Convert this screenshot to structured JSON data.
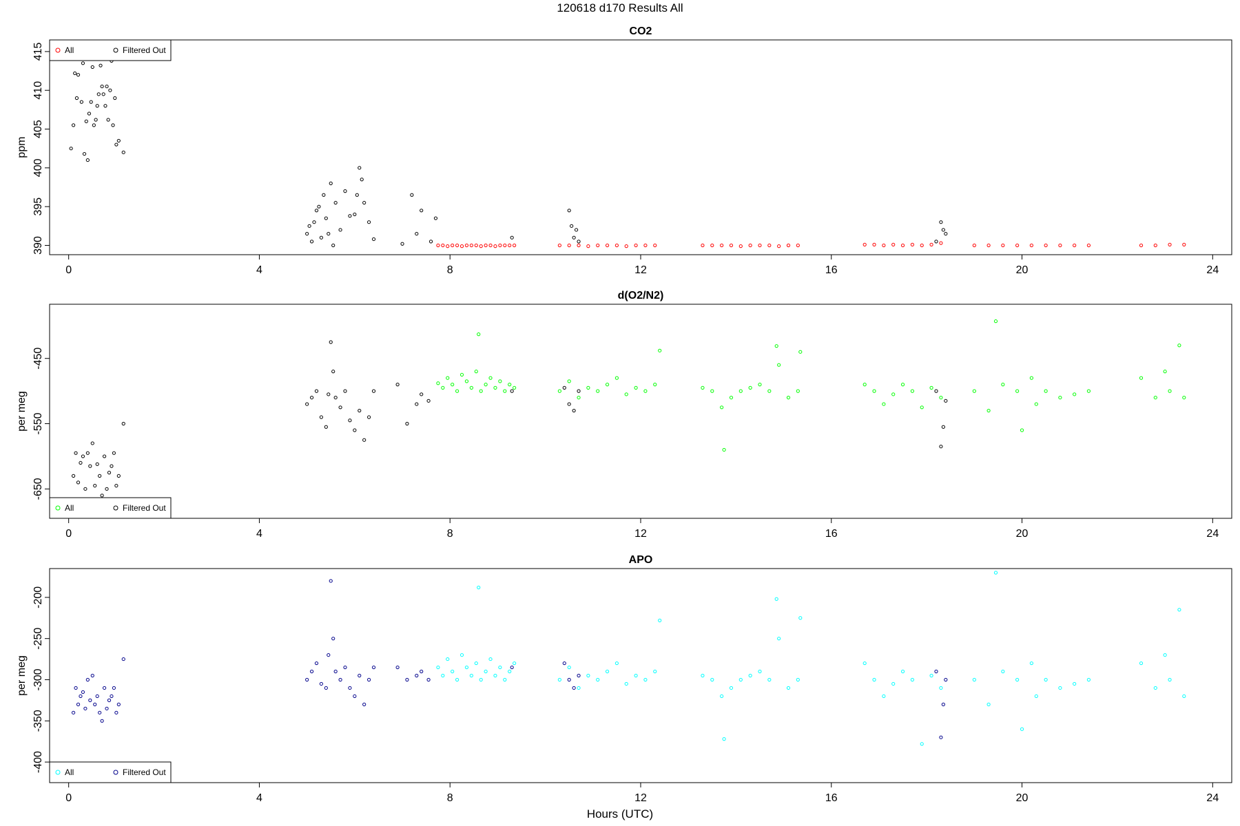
{
  "page": {
    "title": "120618   d170   Results All"
  },
  "colors": {
    "co2_all": "#ff0000",
    "o2_all": "#00ff00",
    "apo_all": "#00ffff",
    "filtered_out": "#000000"
  },
  "chart_data": [
    {
      "type": "scatter",
      "title": "CO2",
      "xlabel": "",
      "ylabel": "ppm",
      "xlim": [
        -0.4,
        24.4
      ],
      "ylim": [
        388.8,
        416.5
      ],
      "xticks": [
        0,
        4,
        8,
        12,
        16,
        20,
        24
      ],
      "yticks": [
        390,
        395,
        400,
        405,
        410,
        415
      ],
      "legend": {
        "position": "top-left",
        "entries": [
          "All",
          "Filtered Out"
        ]
      },
      "series": [
        {
          "name": "All",
          "color": "#ff0000",
          "x": [
            7.75,
            7.85,
            7.95,
            8.05,
            8.15,
            8.25,
            8.35,
            8.45,
            8.55,
            8.65,
            8.75,
            8.85,
            8.95,
            9.05,
            9.15,
            9.25,
            9.35,
            10.3,
            10.5,
            10.7,
            10.9,
            11.1,
            11.3,
            11.5,
            11.7,
            11.9,
            12.1,
            12.3,
            13.3,
            13.5,
            13.7,
            13.9,
            14.1,
            14.3,
            14.5,
            14.7,
            14.9,
            15.1,
            15.3,
            16.7,
            16.9,
            17.1,
            17.3,
            17.5,
            17.7,
            17.9,
            18.1,
            18.3,
            19.0,
            19.3,
            19.6,
            19.9,
            20.2,
            20.5,
            20.8,
            21.1,
            21.4,
            22.5,
            22.8,
            23.1,
            23.4
          ],
          "y": [
            390,
            390,
            389.9,
            390,
            390,
            389.9,
            390,
            390,
            390,
            389.9,
            390,
            390,
            389.9,
            390,
            390,
            390,
            390,
            390,
            390,
            390,
            389.9,
            390,
            390,
            390,
            389.9,
            390,
            390,
            390,
            390,
            390,
            390,
            390,
            389.9,
            390,
            390,
            390,
            389.9,
            390,
            390,
            390.1,
            390.1,
            390,
            390.1,
            390,
            390.1,
            390,
            390.1,
            390.3,
            390,
            390,
            390,
            390,
            390,
            390,
            390,
            390,
            390,
            390,
            390,
            390.1,
            390.1
          ]
        },
        {
          "name": "Filtered Out",
          "color": "#000000",
          "x": [
            0.05,
            0.1,
            0.13,
            0.17,
            0.2,
            0.23,
            0.27,
            0.3,
            0.33,
            0.37,
            0.4,
            0.43,
            0.47,
            0.5,
            0.53,
            0.57,
            0.6,
            0.63,
            0.67,
            0.7,
            0.73,
            0.77,
            0.8,
            0.83,
            0.87,
            0.9,
            0.93,
            0.97,
            1.0,
            1.05,
            1.15,
            5.0,
            5.05,
            5.1,
            5.15,
            5.2,
            5.25,
            5.3,
            5.35,
            5.4,
            5.45,
            5.5,
            5.55,
            5.6,
            5.7,
            5.8,
            5.9,
            6.0,
            6.05,
            6.1,
            6.15,
            6.2,
            6.3,
            6.4,
            7.0,
            7.2,
            7.3,
            7.4,
            7.6,
            7.7,
            9.3,
            10.5,
            10.55,
            10.6,
            10.65,
            10.7,
            18.2,
            18.3,
            18.35,
            18.4
          ],
          "y": [
            402.5,
            405.5,
            412.2,
            409,
            412,
            416,
            408.5,
            413.5,
            401.8,
            406,
            401,
            407,
            408.5,
            413,
            405.5,
            406.2,
            408,
            409.5,
            413.2,
            410.5,
            409.5,
            408,
            410.5,
            406.2,
            410,
            413.8,
            405.5,
            409,
            403,
            403.5,
            402,
            391.5,
            392.5,
            390.5,
            393,
            394.5,
            395,
            391,
            396.5,
            393.5,
            391.5,
            398,
            390,
            395.5,
            392,
            397,
            393.8,
            394,
            396.5,
            400,
            398.5,
            395.5,
            393,
            390.8,
            390.2,
            396.5,
            391.5,
            394.5,
            390.5,
            393.5,
            391,
            394.5,
            392.5,
            391,
            392,
            390.5,
            390.5,
            393,
            392,
            391.5
          ]
        }
      ]
    },
    {
      "type": "scatter",
      "title": "d(O2/N2)",
      "xlabel": "",
      "ylabel": "per meg",
      "xlim": [
        -0.4,
        24.4
      ],
      "ylim": [
        -695,
        -367
      ],
      "xticks": [
        0,
        4,
        8,
        12,
        16,
        20,
        24
      ],
      "yticks": [
        -650,
        -550,
        -450
      ],
      "legend": {
        "position": "bottom-left",
        "entries": [
          "All",
          "Filtered Out"
        ]
      },
      "series": [
        {
          "name": "All",
          "color": "#00ff00",
          "x": [
            7.75,
            7.85,
            7.95,
            8.05,
            8.15,
            8.25,
            8.35,
            8.45,
            8.55,
            8.6,
            8.65,
            8.75,
            8.85,
            8.95,
            9.05,
            9.15,
            9.25,
            9.35,
            10.3,
            10.5,
            10.7,
            10.9,
            11.1,
            11.3,
            11.5,
            11.7,
            11.9,
            12.1,
            12.3,
            12.4,
            13.3,
            13.5,
            13.7,
            13.75,
            13.9,
            14.1,
            14.3,
            14.5,
            14.7,
            14.85,
            14.9,
            15.1,
            15.3,
            15.35,
            16.7,
            16.9,
            17.1,
            17.3,
            17.5,
            17.7,
            17.9,
            18.1,
            18.3,
            19.0,
            19.3,
            19.45,
            19.6,
            19.9,
            20.0,
            20.2,
            20.3,
            20.5,
            20.8,
            21.1,
            21.4,
            22.5,
            22.8,
            23.0,
            23.1,
            23.3,
            23.4
          ],
          "y": [
            -488,
            -495,
            -480,
            -490,
            -500,
            -475,
            -485,
            -495,
            -470,
            -413,
            -500,
            -490,
            -480,
            -495,
            -485,
            -500,
            -490,
            -495,
            -500,
            -485,
            -510,
            -495,
            -500,
            -490,
            -480,
            -505,
            -495,
            -500,
            -490,
            -438,
            -495,
            -500,
            -525,
            -590,
            -510,
            -500,
            -495,
            -490,
            -500,
            -431,
            -460,
            -510,
            -500,
            -440,
            -490,
            -500,
            -520,
            -505,
            -490,
            -500,
            -525,
            -495,
            -510,
            -500,
            -530,
            -393,
            -490,
            -500,
            -560,
            -480,
            -520,
            -500,
            -510,
            -505,
            -500,
            -480,
            -510,
            -470,
            -500,
            -430,
            -510
          ]
        },
        {
          "name": "Filtered Out",
          "color": "#000000",
          "x": [
            0.1,
            0.15,
            0.2,
            0.25,
            0.3,
            0.35,
            0.4,
            0.45,
            0.5,
            0.55,
            0.6,
            0.65,
            0.7,
            0.75,
            0.8,
            0.85,
            0.9,
            0.95,
            1.0,
            1.05,
            1.15,
            5.0,
            5.1,
            5.2,
            5.3,
            5.4,
            5.45,
            5.5,
            5.55,
            5.6,
            5.7,
            5.8,
            5.9,
            6.0,
            6.1,
            6.2,
            6.3,
            6.4,
            6.9,
            7.1,
            7.3,
            7.4,
            7.55,
            9.3,
            10.4,
            10.5,
            10.6,
            10.7,
            18.2,
            18.3,
            18.35,
            18.4
          ],
          "y": [
            -630,
            -595,
            -640,
            -610,
            -600,
            -650,
            -595,
            -615,
            -580,
            -645,
            -612,
            -630,
            -660,
            -600,
            -650,
            -625,
            -615,
            -595,
            -645,
            -630,
            -550,
            -520,
            -510,
            -500,
            -540,
            -555,
            -505,
            -425,
            -470,
            -510,
            -525,
            -500,
            -545,
            -560,
            -530,
            -575,
            -540,
            -500,
            -490,
            -550,
            -520,
            -505,
            -515,
            -500,
            -495,
            -520,
            -530,
            -500,
            -500,
            -585,
            -555,
            -515
          ]
        }
      ]
    },
    {
      "type": "scatter",
      "title": "APO",
      "xlabel": "Hours (UTC)",
      "ylabel": "per meg",
      "xlim": [
        -0.4,
        24.4
      ],
      "ylim": [
        -425,
        -165
      ],
      "xticks": [
        0,
        4,
        8,
        12,
        16,
        20,
        24
      ],
      "yticks": [
        -400,
        -350,
        -300,
        -250,
        -200
      ],
      "legend": {
        "position": "bottom-left",
        "entries": [
          "All",
          "Filtered Out"
        ]
      },
      "series": [
        {
          "name": "All",
          "color": "#00ffff",
          "x": [
            7.75,
            7.85,
            7.95,
            8.05,
            8.15,
            8.25,
            8.35,
            8.45,
            8.55,
            8.6,
            8.65,
            8.75,
            8.85,
            8.95,
            9.05,
            9.15,
            9.25,
            9.35,
            10.3,
            10.5,
            10.7,
            10.9,
            11.1,
            11.3,
            11.5,
            11.7,
            11.9,
            12.1,
            12.3,
            12.4,
            13.3,
            13.5,
            13.7,
            13.75,
            13.9,
            14.1,
            14.3,
            14.5,
            14.7,
            14.85,
            14.9,
            15.1,
            15.3,
            15.35,
            16.7,
            16.9,
            17.1,
            17.3,
            17.5,
            17.7,
            17.9,
            18.1,
            18.3,
            19.0,
            19.3,
            19.45,
            19.6,
            19.9,
            20.0,
            20.2,
            20.3,
            20.5,
            20.8,
            21.1,
            21.4,
            22.5,
            22.8,
            23.0,
            23.1,
            23.3,
            23.4
          ],
          "y": [
            -285,
            -295,
            -275,
            -290,
            -300,
            -270,
            -285,
            -295,
            -280,
            -188,
            -300,
            -290,
            -275,
            -295,
            -285,
            -300,
            -290,
            -280,
            -300,
            -285,
            -310,
            -295,
            -300,
            -290,
            -280,
            -305,
            -295,
            -300,
            -290,
            -228,
            -295,
            -300,
            -320,
            -372,
            -310,
            -300,
            -295,
            -290,
            -300,
            -202,
            -250,
            -310,
            -300,
            -225,
            -280,
            -300,
            -320,
            -305,
            -290,
            -300,
            -378,
            -295,
            -310,
            -300,
            -330,
            -170,
            -290,
            -300,
            -360,
            -280,
            -320,
            -300,
            -310,
            -305,
            -300,
            -280,
            -310,
            -270,
            -300,
            -215,
            -320
          ]
        },
        {
          "name": "Filtered Out",
          "color": "#00008b",
          "x": [
            0.1,
            0.15,
            0.2,
            0.25,
            0.3,
            0.35,
            0.4,
            0.45,
            0.5,
            0.55,
            0.6,
            0.65,
            0.7,
            0.75,
            0.8,
            0.85,
            0.9,
            0.95,
            1.0,
            1.05,
            1.15,
            5.0,
            5.1,
            5.2,
            5.3,
            5.4,
            5.45,
            5.5,
            5.55,
            5.6,
            5.7,
            5.8,
            5.9,
            6.0,
            6.1,
            6.2,
            6.3,
            6.4,
            6.9,
            7.1,
            7.3,
            7.4,
            7.55,
            9.3,
            10.4,
            10.5,
            10.6,
            10.7,
            18.2,
            18.3,
            18.35,
            18.4
          ],
          "y": [
            -340,
            -310,
            -330,
            -320,
            -315,
            -335,
            -300,
            -325,
            -295,
            -330,
            -320,
            -340,
            -350,
            -310,
            -335,
            -325,
            -320,
            -310,
            -340,
            -330,
            -275,
            -300,
            -290,
            -280,
            -305,
            -310,
            -270,
            -180,
            -250,
            -290,
            -300,
            -285,
            -310,
            -320,
            -295,
            -330,
            -300,
            -285,
            -285,
            -300,
            -295,
            -290,
            -300,
            -285,
            -280,
            -300,
            -310,
            -295,
            -290,
            -370,
            -330,
            -300
          ]
        }
      ]
    }
  ]
}
